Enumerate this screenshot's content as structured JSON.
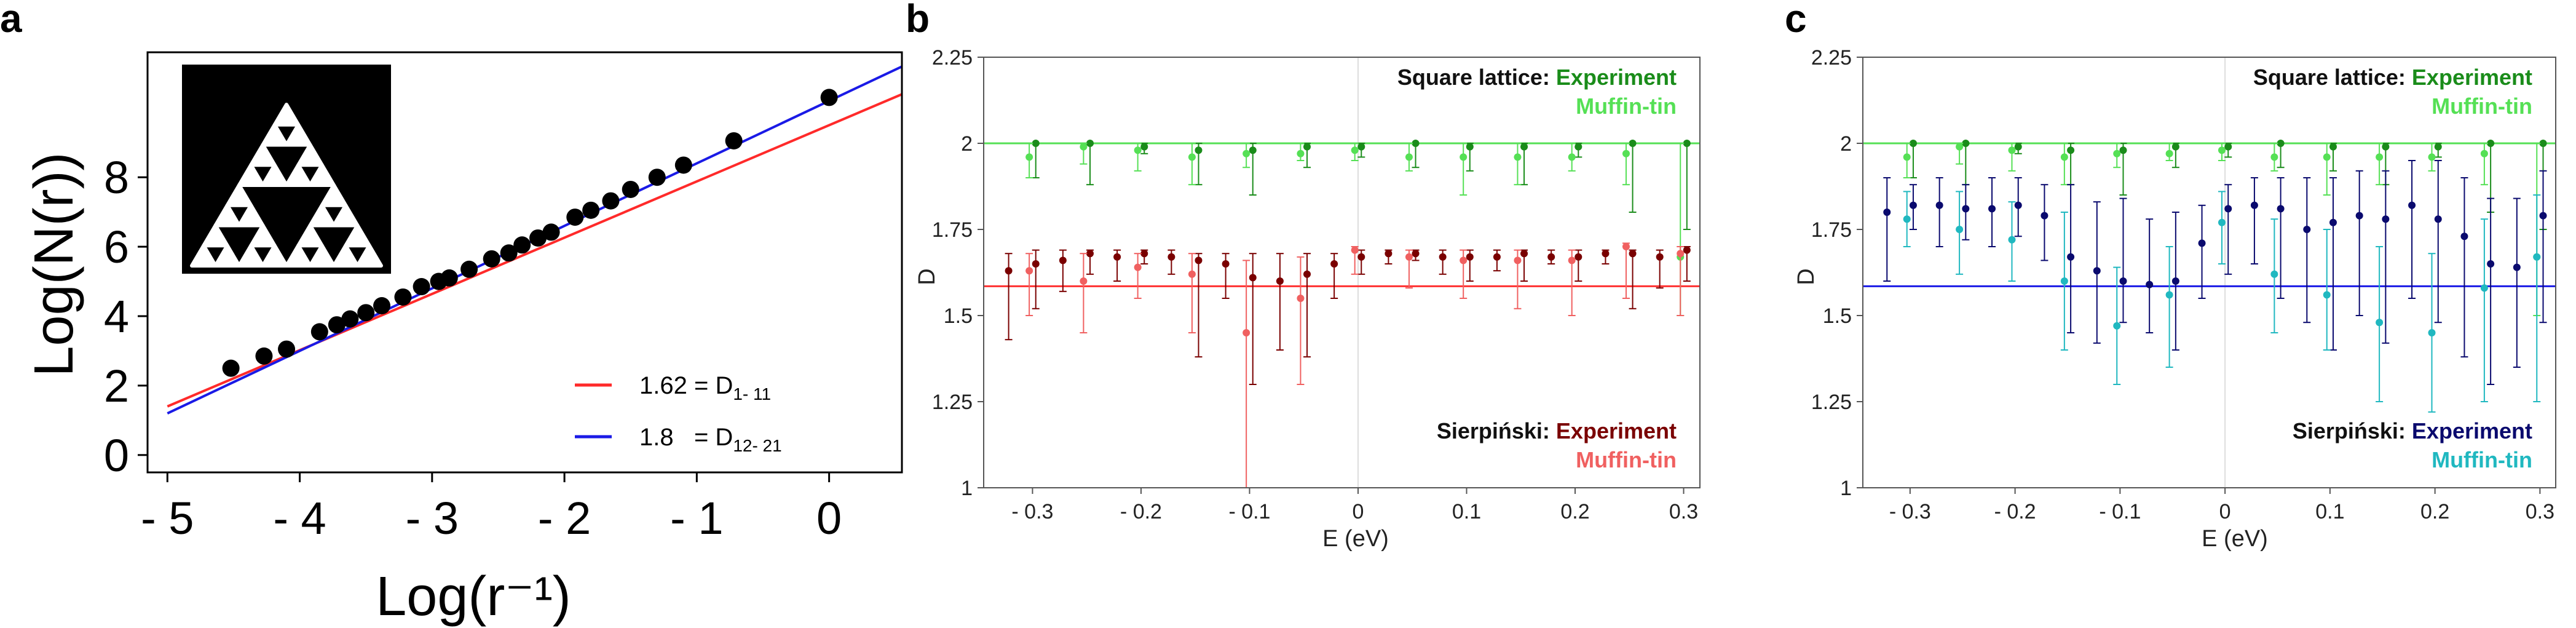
{
  "panel_labels": [
    "a",
    "b",
    "c"
  ],
  "colors": {
    "red_fit": "#ff2a2a",
    "blue_fit": "#1a1ae6",
    "black": "#000000",
    "dark_green": "#1a8c1a",
    "light_green": "#55e055",
    "dark_red": "#7a0000",
    "light_red": "#f06060",
    "navy": "#0a0a6e",
    "teal": "#20b8c0",
    "dark_blue": "#1a1ae6"
  },
  "chart_data": [
    {
      "panel": "a",
      "type": "scatter",
      "xlabel": "Log(r⁻¹)",
      "ylabel": "Log(N(r))",
      "xlim": [
        -5.15,
        0.55
      ],
      "ylim": [
        -0.5,
        11.6
      ],
      "xticks": [
        -5,
        -4,
        -3,
        -2,
        -1,
        0
      ],
      "xtick_labels": [
        "- 5",
        "- 4",
        "- 3",
        "- 2",
        "- 1",
        "0"
      ],
      "yticks": [
        0,
        2,
        4,
        6,
        8
      ],
      "ytick_labels": [
        "0",
        "2",
        "4",
        "6",
        "8"
      ],
      "inset": "sierpinski-gasket-image",
      "series": [
        {
          "kind": "points",
          "x": [
            -4.52,
            -4.27,
            -4.1,
            -3.85,
            -3.72,
            -3.62,
            -3.5,
            -3.38,
            -3.22,
            -3.08,
            -2.95,
            -2.87,
            -2.72,
            -2.55,
            -2.42,
            -2.32,
            -2.2,
            -2.1,
            -1.92,
            -1.8,
            -1.65,
            -1.5,
            -1.3,
            -1.1,
            -0.72,
            0.0
          ],
          "y": [
            2.5,
            2.85,
            3.05,
            3.55,
            3.75,
            3.92,
            4.1,
            4.3,
            4.55,
            4.85,
            5.0,
            5.1,
            5.35,
            5.65,
            5.82,
            6.05,
            6.25,
            6.42,
            6.85,
            7.05,
            7.32,
            7.65,
            8.0,
            8.35,
            9.05,
            10.3
          ]
        },
        {
          "name": "1.62 = D",
          "sub": "1- 11",
          "kind": "line",
          "slope": 1.62,
          "intercept": 9.5,
          "x_range": [
            -5.0,
            0.55
          ]
        },
        {
          "name": "1.8   = D",
          "sub": "12- 21",
          "kind": "line",
          "slope": 1.8,
          "intercept": 10.2,
          "x_range": [
            -5.0,
            0.55
          ]
        }
      ]
    },
    {
      "panel": "b",
      "type": "scatter",
      "xlabel": "E (eV)",
      "ylabel": "D",
      "xlim": [
        -0.345,
        0.315
      ],
      "ylim": [
        1.0,
        2.25
      ],
      "xticks": [
        -0.3,
        -0.2,
        -0.1,
        0.0,
        0.1,
        0.2,
        0.3
      ],
      "xtick_labels": [
        "- 0.3",
        "- 0.2",
        "- 0.1",
        "0",
        "0.1",
        "0.2",
        "0.3"
      ],
      "yticks": [
        1.0,
        1.25,
        1.5,
        1.75,
        2.0,
        2.25
      ],
      "ytick_labels": [
        "1",
        "1.25",
        "1.5",
        "1.75",
        "2",
        "2.25"
      ],
      "hlines": [
        {
          "y": 2.0,
          "color": "#55e055"
        },
        {
          "y": 1.585,
          "color": "#ff3030"
        }
      ],
      "annotations": [
        {
          "prefix": "Square lattice: ",
          "text": "Experiment",
          "color": "#1a8c1a",
          "pos": "top-right-1"
        },
        {
          "prefix": "",
          "text": "Muffin-tin",
          "color": "#55e055",
          "pos": "top-right-2"
        },
        {
          "prefix": "Sierpiński: ",
          "text": "Experiment",
          "color": "#7a0000",
          "pos": "bottom-right-1"
        },
        {
          "prefix": "",
          "text": "Muffin-tin",
          "color": "#f06060",
          "pos": "bottom-right-2"
        }
      ],
      "series": [
        {
          "label": "Square lattice: Experiment",
          "color": "#1a8c1a",
          "offset": 0.003,
          "x": [
            -0.3,
            -0.25,
            -0.2,
            -0.15,
            -0.1,
            -0.05,
            0.0,
            0.05,
            0.1,
            0.15,
            0.2,
            0.25,
            0.3
          ],
          "y": [
            2.0,
            2.0,
            1.99,
            1.98,
            1.98,
            1.99,
            1.99,
            2.0,
            1.99,
            1.99,
            1.99,
            2.0,
            2.0
          ],
          "lo": [
            1.9,
            1.88,
            1.97,
            1.88,
            1.85,
            1.93,
            1.96,
            1.93,
            1.92,
            1.88,
            1.96,
            1.8,
            1.75
          ],
          "hi": [
            2.0,
            2.0,
            2.0,
            2.0,
            2.0,
            2.0,
            2.0,
            2.0,
            2.0,
            2.0,
            2.0,
            2.0,
            2.0
          ]
        },
        {
          "label": "Square lattice: Muffin-tin",
          "color": "#55e055",
          "offset": -0.003,
          "x": [
            -0.3,
            -0.25,
            -0.2,
            -0.15,
            -0.1,
            -0.05,
            0.0,
            0.05,
            0.1,
            0.15,
            0.2,
            0.25,
            0.3
          ],
          "y": [
            1.96,
            1.99,
            1.98,
            1.96,
            1.97,
            1.97,
            1.98,
            1.96,
            1.96,
            1.96,
            1.96,
            1.97,
            1.67
          ],
          "lo": [
            1.9,
            1.94,
            1.92,
            1.88,
            1.93,
            1.95,
            1.95,
            1.92,
            1.85,
            1.88,
            1.92,
            1.88,
            1.5
          ],
          "hi": [
            2.0,
            2.0,
            2.0,
            2.0,
            2.0,
            2.0,
            2.0,
            2.0,
            2.0,
            2.0,
            2.0,
            2.0,
            2.0
          ]
        },
        {
          "label": "Sierpiński: Experiment",
          "color": "#7a0000",
          "offset": 0.003,
          "x": [
            -0.325,
            -0.3,
            -0.275,
            -0.25,
            -0.225,
            -0.2,
            -0.175,
            -0.15,
            -0.125,
            -0.1,
            -0.075,
            -0.05,
            -0.025,
            0.0,
            0.025,
            0.05,
            0.075,
            0.1,
            0.125,
            0.15,
            0.175,
            0.2,
            0.225,
            0.25,
            0.275,
            0.3
          ],
          "y": [
            1.63,
            1.65,
            1.66,
            1.68,
            1.67,
            1.68,
            1.67,
            1.66,
            1.65,
            1.61,
            1.6,
            1.62,
            1.65,
            1.67,
            1.68,
            1.68,
            1.67,
            1.67,
            1.67,
            1.68,
            1.67,
            1.67,
            1.68,
            1.68,
            1.67,
            1.69
          ],
          "lo": [
            1.43,
            1.52,
            1.57,
            1.62,
            1.6,
            1.65,
            1.62,
            1.38,
            1.55,
            1.3,
            1.4,
            1.38,
            1.55,
            1.62,
            1.65,
            1.66,
            1.62,
            1.6,
            1.63,
            1.6,
            1.65,
            1.6,
            1.65,
            1.52,
            1.58,
            1.6
          ],
          "hi": [
            1.68,
            1.69,
            1.69,
            1.69,
            1.69,
            1.69,
            1.69,
            1.68,
            1.68,
            1.68,
            1.68,
            1.68,
            1.68,
            1.69,
            1.69,
            1.69,
            1.69,
            1.69,
            1.69,
            1.69,
            1.69,
            1.69,
            1.69,
            1.69,
            1.69,
            1.7
          ]
        },
        {
          "label": "Sierpiński: Muffin-tin",
          "color": "#f06060",
          "offset": -0.003,
          "x": [
            -0.3,
            -0.25,
            -0.2,
            -0.15,
            -0.1,
            -0.05,
            0.0,
            0.05,
            0.1,
            0.15,
            0.2,
            0.25,
            0.3
          ],
          "y": [
            1.63,
            1.6,
            1.64,
            1.62,
            1.45,
            1.55,
            1.69,
            1.67,
            1.66,
            1.66,
            1.66,
            1.7,
            1.68
          ],
          "lo": [
            1.5,
            1.45,
            1.55,
            1.45,
            1.0,
            1.3,
            1.62,
            1.58,
            1.55,
            1.52,
            1.5,
            1.55,
            1.5
          ],
          "hi": [
            1.68,
            1.68,
            1.68,
            1.68,
            1.66,
            1.67,
            1.7,
            1.69,
            1.69,
            1.69,
            1.69,
            1.71,
            1.7
          ]
        }
      ]
    },
    {
      "panel": "c",
      "type": "scatter",
      "xlabel": "E (eV)",
      "ylabel": "D",
      "xlim": [
        -0.345,
        0.315
      ],
      "ylim": [
        1.0,
        2.25
      ],
      "xticks": [
        -0.3,
        -0.2,
        -0.1,
        0.0,
        0.1,
        0.2,
        0.3
      ],
      "xtick_labels": [
        "- 0.3",
        "- 0.2",
        "- 0.1",
        "0",
        "0.1",
        "0.2",
        "0.3"
      ],
      "yticks": [
        1.0,
        1.25,
        1.5,
        1.75,
        2.0,
        2.25
      ],
      "ytick_labels": [
        "1",
        "1.25",
        "1.5",
        "1.75",
        "2",
        "2.25"
      ],
      "hlines": [
        {
          "y": 2.0,
          "color": "#55e055"
        },
        {
          "y": 1.585,
          "color": "#1a1ae6"
        }
      ],
      "annotations": [
        {
          "prefix": "Square lattice: ",
          "text": "Experiment",
          "color": "#1a8c1a",
          "pos": "top-right-1"
        },
        {
          "prefix": "",
          "text": "Muffin-tin",
          "color": "#55e055",
          "pos": "top-right-2"
        },
        {
          "prefix": "Sierpiński: ",
          "text": "Experiment",
          "color": "#0a0a6e",
          "pos": "bottom-right-1"
        },
        {
          "prefix": "",
          "text": "Muffin-tin",
          "color": "#20b8c0",
          "pos": "bottom-right-2"
        }
      ],
      "series": [
        {
          "label": "Square lattice: Experiment",
          "color": "#1a8c1a",
          "offset": 0.003,
          "x": [
            -0.3,
            -0.25,
            -0.2,
            -0.15,
            -0.1,
            -0.05,
            0.0,
            0.05,
            0.1,
            0.15,
            0.2,
            0.25,
            0.3
          ],
          "y": [
            2.0,
            2.0,
            1.99,
            1.98,
            1.98,
            1.99,
            1.99,
            2.0,
            1.99,
            1.99,
            1.99,
            2.0,
            2.0
          ],
          "lo": [
            1.9,
            1.88,
            1.97,
            1.88,
            1.85,
            1.93,
            1.96,
            1.93,
            1.92,
            1.88,
            1.96,
            1.8,
            1.75
          ],
          "hi": [
            2.0,
            2.0,
            2.0,
            2.0,
            2.0,
            2.0,
            2.0,
            2.0,
            2.0,
            2.0,
            2.0,
            2.0,
            2.0
          ]
        },
        {
          "label": "Square lattice: Muffin-tin",
          "color": "#55e055",
          "offset": -0.003,
          "x": [
            -0.3,
            -0.25,
            -0.2,
            -0.15,
            -0.1,
            -0.05,
            0.0,
            0.05,
            0.1,
            0.15,
            0.2,
            0.25,
            0.3
          ],
          "y": [
            1.96,
            1.99,
            1.98,
            1.96,
            1.97,
            1.97,
            1.98,
            1.96,
            1.96,
            1.96,
            1.96,
            1.97,
            1.67
          ],
          "lo": [
            1.9,
            1.94,
            1.92,
            1.88,
            1.93,
            1.95,
            1.95,
            1.92,
            1.85,
            1.88,
            1.92,
            1.88,
            1.5
          ],
          "hi": [
            2.0,
            2.0,
            2.0,
            2.0,
            2.0,
            2.0,
            2.0,
            2.0,
            2.0,
            2.0,
            2.0,
            2.0,
            2.0
          ]
        },
        {
          "label": "Sierpiński: Experiment",
          "color": "#0a0a6e",
          "offset": 0.003,
          "x": [
            -0.325,
            -0.3,
            -0.275,
            -0.25,
            -0.225,
            -0.2,
            -0.175,
            -0.15,
            -0.125,
            -0.1,
            -0.075,
            -0.05,
            -0.025,
            0.0,
            0.025,
            0.05,
            0.075,
            0.1,
            0.125,
            0.15,
            0.175,
            0.2,
            0.225,
            0.25,
            0.275,
            0.3
          ],
          "y": [
            1.8,
            1.82,
            1.82,
            1.81,
            1.81,
            1.82,
            1.79,
            1.67,
            1.63,
            1.6,
            1.59,
            1.6,
            1.71,
            1.81,
            1.82,
            1.81,
            1.75,
            1.77,
            1.79,
            1.78,
            1.82,
            1.78,
            1.73,
            1.65,
            1.64,
            1.79
          ],
          "lo": [
            1.6,
            1.75,
            1.7,
            1.72,
            1.7,
            1.73,
            1.66,
            1.45,
            1.42,
            1.48,
            1.45,
            1.4,
            1.55,
            1.62,
            1.65,
            1.55,
            1.48,
            1.4,
            1.5,
            1.42,
            1.55,
            1.48,
            1.38,
            1.3,
            1.35,
            1.48
          ],
          "hi": [
            1.9,
            1.88,
            1.9,
            1.88,
            1.9,
            1.9,
            1.88,
            1.88,
            1.83,
            1.84,
            1.78,
            1.8,
            1.82,
            1.88,
            1.9,
            1.9,
            1.9,
            1.9,
            1.92,
            1.92,
            1.95,
            1.95,
            1.9,
            1.84,
            1.84,
            1.92
          ]
        },
        {
          "label": "Sierpiński: Muffin-tin",
          "color": "#20b8c0",
          "offset": -0.003,
          "x": [
            -0.3,
            -0.25,
            -0.2,
            -0.15,
            -0.1,
            -0.05,
            0.0,
            0.05,
            0.1,
            0.15,
            0.2,
            0.25,
            0.3
          ],
          "y": [
            1.78,
            1.75,
            1.72,
            1.6,
            1.47,
            1.56,
            1.77,
            1.62,
            1.56,
            1.48,
            1.45,
            1.58,
            1.67
          ],
          "lo": [
            1.7,
            1.62,
            1.6,
            1.4,
            1.3,
            1.35,
            1.65,
            1.45,
            1.4,
            1.25,
            1.22,
            1.25,
            1.25
          ],
          "hi": [
            1.86,
            1.86,
            1.83,
            1.8,
            1.64,
            1.7,
            1.86,
            1.78,
            1.75,
            1.7,
            1.68,
            1.78,
            1.85
          ]
        }
      ]
    }
  ]
}
